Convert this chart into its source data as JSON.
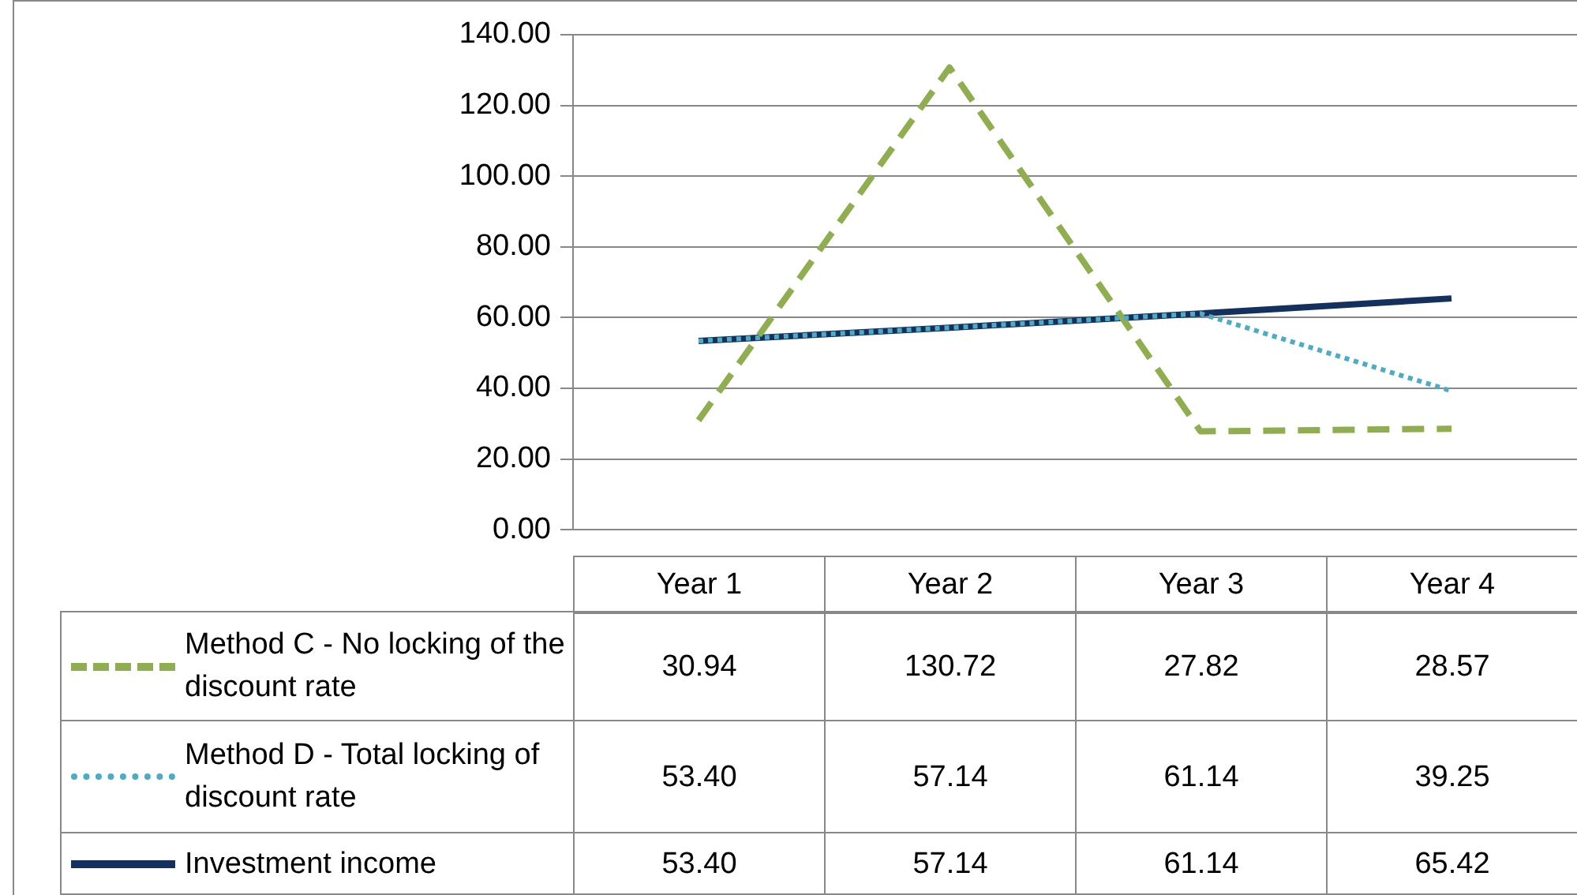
{
  "chart_data": {
    "type": "line",
    "categories": [
      "Year 1",
      "Year 2",
      "Year 3",
      "Year 4"
    ],
    "series": [
      {
        "name": "Method C - No locking of the discount rate",
        "color": "#8fae4f",
        "line_style": "dashed",
        "values": [
          30.94,
          130.72,
          27.82,
          28.57
        ],
        "value_labels": [
          "30.94",
          "130.72",
          "27.82",
          "28.57"
        ]
      },
      {
        "name": "Method D - Total locking of discount rate",
        "color": "#4bacc6",
        "line_style": "dotted",
        "values": [
          53.4,
          57.14,
          61.14,
          39.25
        ],
        "value_labels": [
          "53.40",
          "57.14",
          "61.14",
          "39.25"
        ]
      },
      {
        "name": "Investment income",
        "color": "#14305e",
        "line_style": "solid",
        "values": [
          53.4,
          57.14,
          61.14,
          65.42
        ],
        "value_labels": [
          "53.40",
          "57.14",
          "61.14",
          "65.42"
        ]
      }
    ],
    "ylim": [
      0,
      140
    ],
    "yticks": [
      {
        "value": 0,
        "label": "0.00"
      },
      {
        "value": 20,
        "label": "20.00"
      },
      {
        "value": 40,
        "label": "40.00"
      },
      {
        "value": 60,
        "label": "60.00"
      },
      {
        "value": 80,
        "label": "80.00"
      },
      {
        "value": 100,
        "label": "100.00"
      },
      {
        "value": 120,
        "label": "120.00"
      },
      {
        "value": 140,
        "label": "140.00"
      }
    ],
    "grid": "y",
    "legend": "bottom",
    "marker": "none"
  }
}
